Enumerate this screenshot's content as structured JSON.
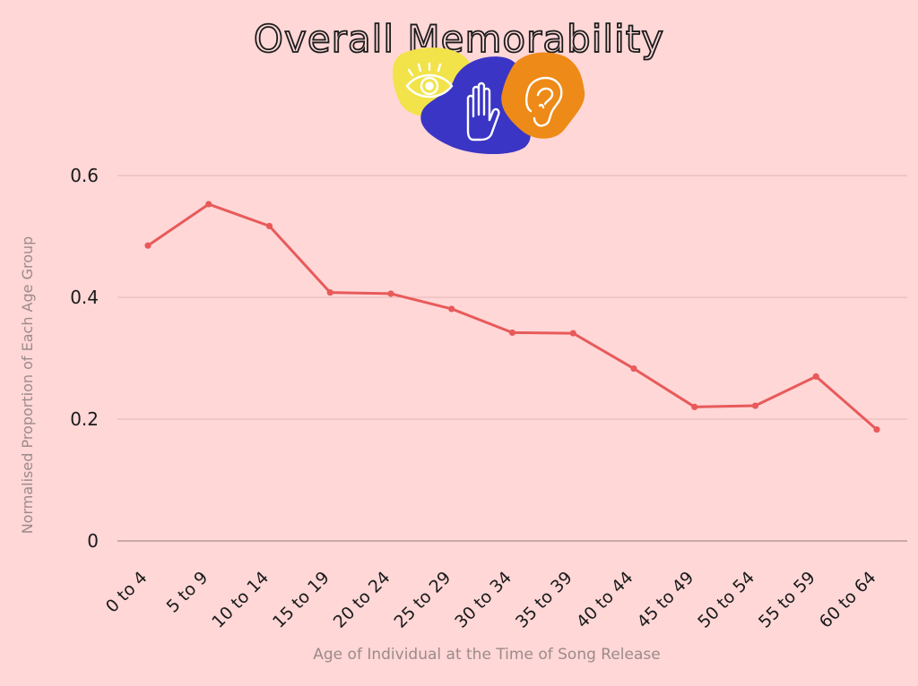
{
  "chart_data": {
    "type": "line",
    "title": "Overall Memorability",
    "xlabel": "Age of Individual at the Time of Song Release",
    "ylabel": "Normalised Proportion of Each Age Group",
    "categories": [
      "0 to 4",
      "5 to 9",
      "10 to 14",
      "15 to 19",
      "20 to 24",
      "25 to 29",
      "30 to 34",
      "35 to 39",
      "40 to 44",
      "45 to 49",
      "50 to 54",
      "55 to 59",
      "60 to 64"
    ],
    "series": [
      {
        "values": [
          0.485,
          0.553,
          0.517,
          0.408,
          0.406,
          0.381,
          0.342,
          0.341,
          0.283,
          0.22,
          0.222,
          0.27,
          0.183
        ],
        "color": "#e85a5a"
      }
    ],
    "yticks": [
      0,
      0.2,
      0.4,
      0.6
    ],
    "ytick_labels": [
      "0",
      "0.2",
      "0.4",
      "0.6"
    ],
    "ylim": [
      0,
      0.6
    ],
    "grid": true,
    "legend": "none"
  },
  "colors": {
    "background": "#ffd7d7",
    "line": "#e85a5a",
    "grid": "#e3b6b6",
    "axis_label": "#9d8a8a",
    "tick_label": "#1a1a1a",
    "logo_yellow": "#f2e34a",
    "logo_blue": "#3a35c4",
    "logo_orange": "#ee8a18"
  },
  "logo": {
    "icons": [
      "eye-icon",
      "hand-icon",
      "ear-icon"
    ]
  }
}
